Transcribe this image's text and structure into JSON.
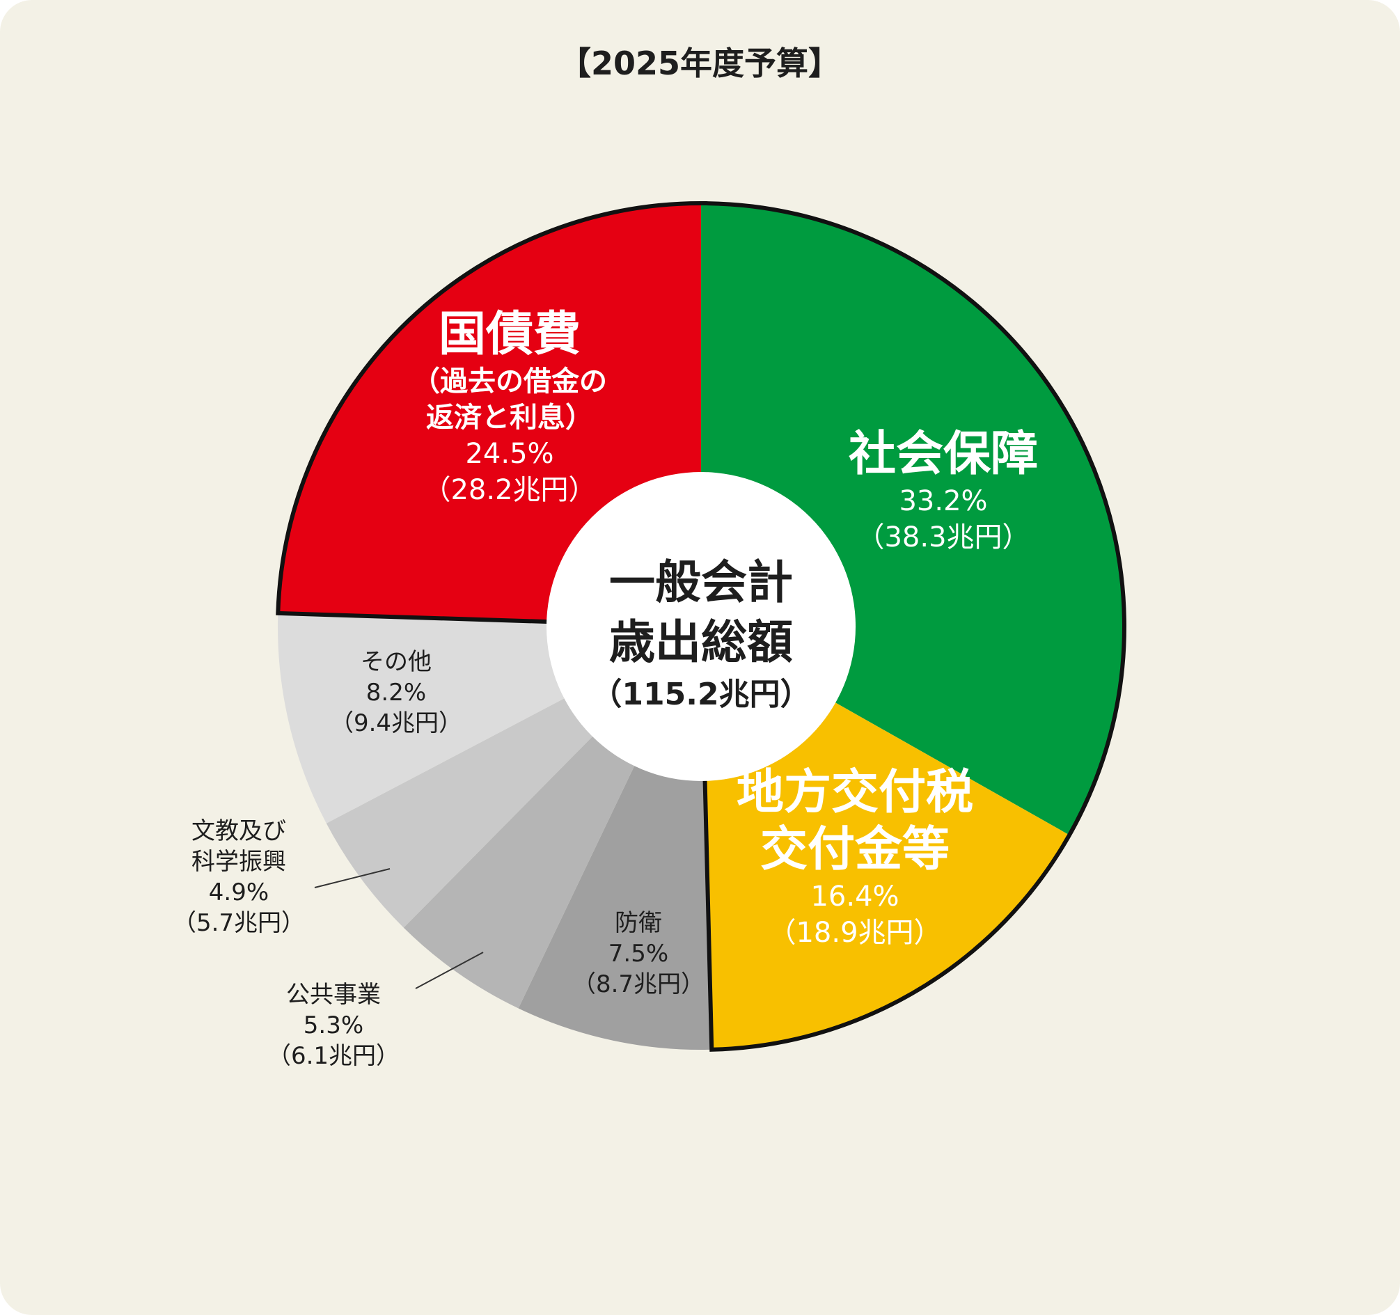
{
  "title": "【2025年度予算】",
  "colors": {
    "background": "#f3f1e6",
    "social_security": "#009b3f",
    "local_tax": "#f8c000",
    "defense": "#a0a0a0",
    "public_works": "#b5b5b5",
    "education": "#c9c9c9",
    "other": "#dcdcdc",
    "national_debt": "#e50012",
    "outline": "#111111"
  },
  "chart_data": {
    "type": "pie",
    "title": "【2025年度予算】",
    "center": {
      "line1": "一般会計",
      "line2": "歳出総額",
      "amount": "（115.2兆円）"
    },
    "slices": [
      {
        "key": "social_security",
        "name": [
          "社会保障"
        ],
        "percent": 33.2,
        "percent_label": "33.2%",
        "amount": 38.3,
        "amount_label": "（38.3兆円）",
        "color": "#009b3f"
      },
      {
        "key": "local_tax",
        "name": [
          "地方交付税",
          "交付金等"
        ],
        "percent": 16.4,
        "percent_label": "16.4%",
        "amount": 18.9,
        "amount_label": "（18.9兆円）",
        "color": "#f8c000"
      },
      {
        "key": "defense",
        "name": [
          "防衛"
        ],
        "percent": 7.5,
        "percent_label": "7.5%",
        "amount": 8.7,
        "amount_label": "（8.7兆円）",
        "color": "#a0a0a0"
      },
      {
        "key": "public_works",
        "name": [
          "公共事業"
        ],
        "percent": 5.3,
        "percent_label": "5.3%",
        "amount": 6.1,
        "amount_label": "（6.1兆円）",
        "color": "#b5b5b5"
      },
      {
        "key": "education",
        "name": [
          "文教及び",
          "科学振興"
        ],
        "percent": 4.9,
        "percent_label": "4.9%",
        "amount": 5.7,
        "amount_label": "（5.7兆円）",
        "color": "#c9c9c9"
      },
      {
        "key": "other",
        "name": [
          "その他"
        ],
        "percent": 8.2,
        "percent_label": "8.2%",
        "amount": 9.4,
        "amount_label": "（9.4兆円）",
        "color": "#dcdcdc"
      },
      {
        "key": "national_debt",
        "name": [
          "国債費"
        ],
        "sub": [
          "（過去の借金の",
          "返済と利息）"
        ],
        "percent": 24.5,
        "percent_label": "24.5%",
        "amount": 28.2,
        "amount_label": "（28.2兆円）",
        "color": "#e50012"
      }
    ]
  }
}
